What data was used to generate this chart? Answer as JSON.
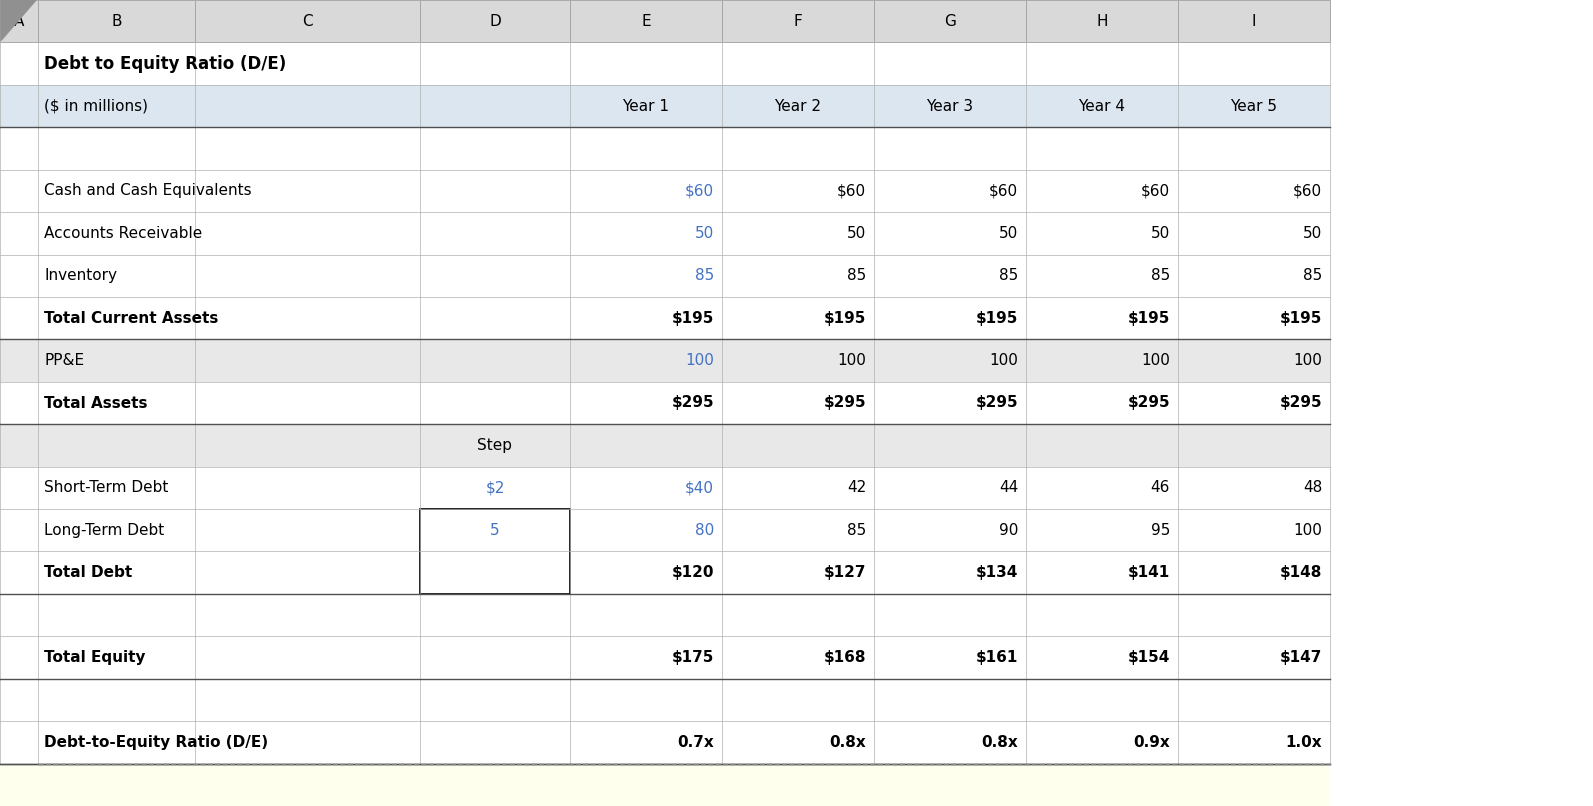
{
  "title": "Debt to Equity Ratio (D/E)",
  "subtitle": "($ in millions)",
  "col_headers": [
    "A",
    "B",
    "C",
    "D",
    "E",
    "F",
    "G",
    "H",
    "I"
  ],
  "year_headers": [
    "Year 1",
    "Year 2",
    "Year 3",
    "Year 4",
    "Year 5"
  ],
  "rows": {
    "row2_title": "Debt to Equity Ratio (D/E)",
    "row3_label": "($ in millions)",
    "row5_label": "Cash and Cash Equivalents",
    "row5_values": [
      "$60",
      "$60",
      "$60",
      "$60",
      "$60"
    ],
    "row6_label": "Accounts Receivable",
    "row6_values": [
      "50",
      "50",
      "50",
      "50",
      "50"
    ],
    "row7_label": "Inventory",
    "row7_values": [
      "85",
      "85",
      "85",
      "85",
      "85"
    ],
    "row8_label": "Total Current Assets",
    "row8_values": [
      "$195",
      "$195",
      "$195",
      "$195",
      "$195"
    ],
    "row9_label": "PP&E",
    "row9_values": [
      "100",
      "100",
      "100",
      "100",
      "100"
    ],
    "row10_label": "Total Assets",
    "row10_values": [
      "$295",
      "$295",
      "$295",
      "$295",
      "$295"
    ],
    "row11_step_label": "Step",
    "row12_label": "Short-Term Debt",
    "row12_step": "$2",
    "row12_values": [
      "$40",
      "42",
      "44",
      "46",
      "48"
    ],
    "row13_label": "Long-Term Debt",
    "row13_step": "5",
    "row13_values": [
      "80",
      "85",
      "90",
      "95",
      "100"
    ],
    "row14_label": "Total Debt",
    "row14_values": [
      "$120",
      "$127",
      "$134",
      "$141",
      "$148"
    ],
    "row16_label": "Total Equity",
    "row16_values": [
      "$175",
      "$168",
      "$161",
      "$154",
      "$147"
    ],
    "row18_label": "Debt-to-Equity Ratio (D/E)",
    "row18_values": [
      "0.7x",
      "0.8x",
      "0.8x",
      "0.9x",
      "1.0x"
    ]
  },
  "colors": {
    "title_bg": "#dce6f1",
    "row_white_bg": "#ffffff",
    "bold_row_bg": "#e8e8e8",
    "ratio_bg": "#ffffee",
    "blue_text": "#4472c4",
    "black_text": "#000000",
    "col_header_bg": "#d9d9d9",
    "grid_line": "#b0b0b0",
    "border_color": "#808080"
  },
  "fig_width": 15.93,
  "fig_height": 8.06,
  "dpi": 100
}
